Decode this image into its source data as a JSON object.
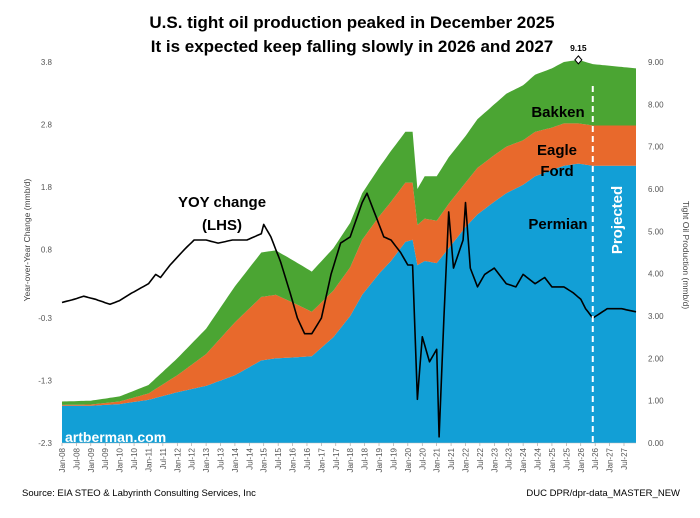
{
  "chart_data": {
    "type": "area",
    "title": "U.S. tight oil production peaked in December 2025",
    "subtitle": "It is expected keep falling slowly in 2026 and 2027",
    "ylabel_left": "Year-over-Year Change (mmb/d)",
    "ylabel_right": "Tight Oil Production (mmb/d)",
    "ylim_left": [
      -2.3,
      3.8
    ],
    "ylim_right": [
      0,
      9
    ],
    "yticks_left": [
      "3.8",
      "2.8",
      "1.8",
      "0.8",
      "-0.3",
      "-1.3",
      "-2.3"
    ],
    "yticks_right": [
      "9.00",
      "8.00",
      "7.00",
      "6.00",
      "5.00",
      "4.00",
      "3.00",
      "2.00",
      "1.00",
      "0.00"
    ],
    "x_tick_labels": [
      "Jan-08",
      "Jul-08",
      "Jan-09",
      "Jul-09",
      "Jan-10",
      "Jul-10",
      "Jan-11",
      "Jul-11",
      "Jan-12",
      "Jul-12",
      "Jan-13",
      "Jul-13",
      "Jan-14",
      "Jul-14",
      "Jan-15",
      "Jul-15",
      "Jan-16",
      "Jul-16",
      "Jan-17",
      "Jul-17",
      "Jan-18",
      "Jul-18",
      "Jan-19",
      "Jul-19",
      "Jan-20",
      "Jul-20",
      "Jan-21",
      "Jul-21",
      "Jan-22",
      "Jul-22",
      "Jan-23",
      "Jul-23",
      "Jan-24",
      "Jul-24",
      "Jan-25",
      "Jul-25",
      "Jan-26",
      "Jul-26",
      "Jan-27",
      "Jul-27"
    ],
    "x_start": "2008-01",
    "x_end": "2027-12",
    "projection_start": "2026-06",
    "peak_label": "9.15",
    "peak_date": "2025-12",
    "stack_series": [
      {
        "name": "Permian",
        "color": "#129fd6",
        "points": [
          [
            "2008-01",
            0.88
          ],
          [
            "2009-01",
            0.88
          ],
          [
            "2010-01",
            0.92
          ],
          [
            "2011-01",
            1.02
          ],
          [
            "2012-01",
            1.2
          ],
          [
            "2013-01",
            1.35
          ],
          [
            "2014-01",
            1.6
          ],
          [
            "2014-12",
            1.95
          ],
          [
            "2015-06",
            2.0
          ],
          [
            "2016-01",
            2.02
          ],
          [
            "2016-09",
            2.05
          ],
          [
            "2017-06",
            2.5
          ],
          [
            "2018-01",
            3.0
          ],
          [
            "2018-06",
            3.5
          ],
          [
            "2019-01",
            4.0
          ],
          [
            "2019-06",
            4.3
          ],
          [
            "2019-12",
            4.75
          ],
          [
            "2020-03",
            4.8
          ],
          [
            "2020-05",
            4.2
          ],
          [
            "2020-08",
            4.3
          ],
          [
            "2021-01",
            4.25
          ],
          [
            "2021-06",
            4.6
          ],
          [
            "2022-01",
            5.1
          ],
          [
            "2022-06",
            5.4
          ],
          [
            "2023-01",
            5.7
          ],
          [
            "2023-06",
            5.9
          ],
          [
            "2024-01",
            6.1
          ],
          [
            "2024-06",
            6.3
          ],
          [
            "2025-01",
            6.45
          ],
          [
            "2025-06",
            6.55
          ],
          [
            "2025-12",
            6.6
          ],
          [
            "2026-06",
            6.55
          ],
          [
            "2027-12",
            6.55
          ]
        ]
      },
      {
        "name": "Eagle Ford",
        "color": "#e8692c",
        "points": [
          [
            "2008-01",
            0.02
          ],
          [
            "2009-01",
            0.03
          ],
          [
            "2010-01",
            0.06
          ],
          [
            "2011-01",
            0.15
          ],
          [
            "2012-01",
            0.4
          ],
          [
            "2013-01",
            0.75
          ],
          [
            "2014-01",
            1.25
          ],
          [
            "2014-12",
            1.5
          ],
          [
            "2015-06",
            1.5
          ],
          [
            "2016-01",
            1.3
          ],
          [
            "2016-09",
            1.05
          ],
          [
            "2017-06",
            1.1
          ],
          [
            "2018-01",
            1.15
          ],
          [
            "2018-06",
            1.3
          ],
          [
            "2019-01",
            1.35
          ],
          [
            "2019-06",
            1.4
          ],
          [
            "2019-12",
            1.4
          ],
          [
            "2020-03",
            1.35
          ],
          [
            "2020-05",
            0.95
          ],
          [
            "2020-08",
            1.0
          ],
          [
            "2021-01",
            1.0
          ],
          [
            "2021-06",
            1.05
          ],
          [
            "2022-01",
            1.05
          ],
          [
            "2022-06",
            1.1
          ],
          [
            "2023-01",
            1.1
          ],
          [
            "2023-06",
            1.1
          ],
          [
            "2024-01",
            1.05
          ],
          [
            "2024-06",
            1.05
          ],
          [
            "2025-01",
            1.0
          ],
          [
            "2025-06",
            1.0
          ],
          [
            "2025-12",
            0.95
          ],
          [
            "2026-06",
            0.95
          ],
          [
            "2027-12",
            0.95
          ]
        ]
      },
      {
        "name": "Bakken",
        "color": "#4ba533",
        "points": [
          [
            "2008-01",
            0.08
          ],
          [
            "2009-01",
            0.09
          ],
          [
            "2010-01",
            0.12
          ],
          [
            "2011-01",
            0.2
          ],
          [
            "2012-01",
            0.4
          ],
          [
            "2013-01",
            0.6
          ],
          [
            "2014-01",
            0.85
          ],
          [
            "2014-12",
            1.05
          ],
          [
            "2015-06",
            1.05
          ],
          [
            "2016-01",
            1.0
          ],
          [
            "2016-09",
            0.95
          ],
          [
            "2017-06",
            1.0
          ],
          [
            "2018-01",
            1.05
          ],
          [
            "2018-06",
            1.1
          ],
          [
            "2019-01",
            1.15
          ],
          [
            "2019-06",
            1.2
          ],
          [
            "2019-12",
            1.2
          ],
          [
            "2020-03",
            1.2
          ],
          [
            "2020-05",
            0.85
          ],
          [
            "2020-08",
            1.0
          ],
          [
            "2021-01",
            1.05
          ],
          [
            "2021-06",
            1.1
          ],
          [
            "2022-01",
            1.1
          ],
          [
            "2022-06",
            1.15
          ],
          [
            "2023-01",
            1.2
          ],
          [
            "2023-06",
            1.25
          ],
          [
            "2024-01",
            1.3
          ],
          [
            "2024-06",
            1.35
          ],
          [
            "2025-01",
            1.4
          ],
          [
            "2025-06",
            1.45
          ],
          [
            "2025-12",
            1.5
          ],
          [
            "2026-06",
            1.45
          ],
          [
            "2027-12",
            1.35
          ]
        ]
      }
    ],
    "yoy_series": {
      "name": "YOY change (LHS)",
      "color": "#000000",
      "points": [
        [
          "2008-01",
          -0.05
        ],
        [
          "2008-06",
          0.0
        ],
        [
          "2008-10",
          0.05
        ],
        [
          "2009-03",
          0.0
        ],
        [
          "2009-09",
          -0.08
        ],
        [
          "2010-01",
          -0.02
        ],
        [
          "2010-06",
          0.1
        ],
        [
          "2011-01",
          0.25
        ],
        [
          "2011-04",
          0.4
        ],
        [
          "2011-06",
          0.35
        ],
        [
          "2011-10",
          0.55
        ],
        [
          "2012-04",
          0.8
        ],
        [
          "2012-08",
          0.95
        ],
        [
          "2013-01",
          0.95
        ],
        [
          "2013-06",
          0.9
        ],
        [
          "2013-12",
          0.95
        ],
        [
          "2014-06",
          0.95
        ],
        [
          "2014-12",
          1.05
        ],
        [
          "2015-01",
          1.2
        ],
        [
          "2015-04",
          1.0
        ],
        [
          "2015-08",
          0.6
        ],
        [
          "2015-12",
          0.1
        ],
        [
          "2016-03",
          -0.3
        ],
        [
          "2016-06",
          -0.55
        ],
        [
          "2016-09",
          -0.55
        ],
        [
          "2017-01",
          -0.3
        ],
        [
          "2017-05",
          0.4
        ],
        [
          "2017-09",
          0.9
        ],
        [
          "2018-01",
          1.0
        ],
        [
          "2018-06",
          1.55
        ],
        [
          "2018-08",
          1.7
        ],
        [
          "2018-12",
          1.3
        ],
        [
          "2019-03",
          1.0
        ],
        [
          "2019-06",
          0.95
        ],
        [
          "2019-10",
          0.75
        ],
        [
          "2020-01",
          0.55
        ],
        [
          "2020-03",
          0.55
        ],
        [
          "2020-05",
          -1.6
        ],
        [
          "2020-07",
          -0.6
        ],
        [
          "2020-10",
          -1.0
        ],
        [
          "2021-01",
          -0.8
        ],
        [
          "2021-02",
          -2.2
        ],
        [
          "2021-04",
          -0.3
        ],
        [
          "2021-06",
          1.4
        ],
        [
          "2021-08",
          0.5
        ],
        [
          "2021-12",
          0.95
        ],
        [
          "2022-01",
          1.55
        ],
        [
          "2022-03",
          0.5
        ],
        [
          "2022-06",
          0.2
        ],
        [
          "2022-09",
          0.4
        ],
        [
          "2023-01",
          0.5
        ],
        [
          "2023-06",
          0.25
        ],
        [
          "2023-10",
          0.2
        ],
        [
          "2024-01",
          0.4
        ],
        [
          "2024-06",
          0.25
        ],
        [
          "2024-10",
          0.35
        ],
        [
          "2025-01",
          0.2
        ],
        [
          "2025-06",
          0.2
        ],
        [
          "2025-10",
          0.1
        ],
        [
          "2026-01",
          0.0
        ],
        [
          "2026-03",
          -0.15
        ],
        [
          "2026-06",
          -0.3
        ],
        [
          "2026-12",
          -0.15
        ],
        [
          "2027-06",
          -0.15
        ],
        [
          "2027-12",
          -0.2
        ]
      ]
    },
    "annotations": {
      "yoy_label_line1": "YOY change",
      "yoy_label_line2": "(LHS)",
      "bakken": "Bakken",
      "eagle_ford_line1": "Eagle",
      "eagle_ford_line2": "Ford",
      "permian": "Permian",
      "projected": "Projected",
      "watermark": "artberman.com"
    },
    "legend": "none",
    "grid": false
  },
  "footer": {
    "source": "Source: EIA STEO & Labyrinth Consulting Services, Inc",
    "file": "DUC DPR/dpr-data_MASTER_NEW"
  }
}
